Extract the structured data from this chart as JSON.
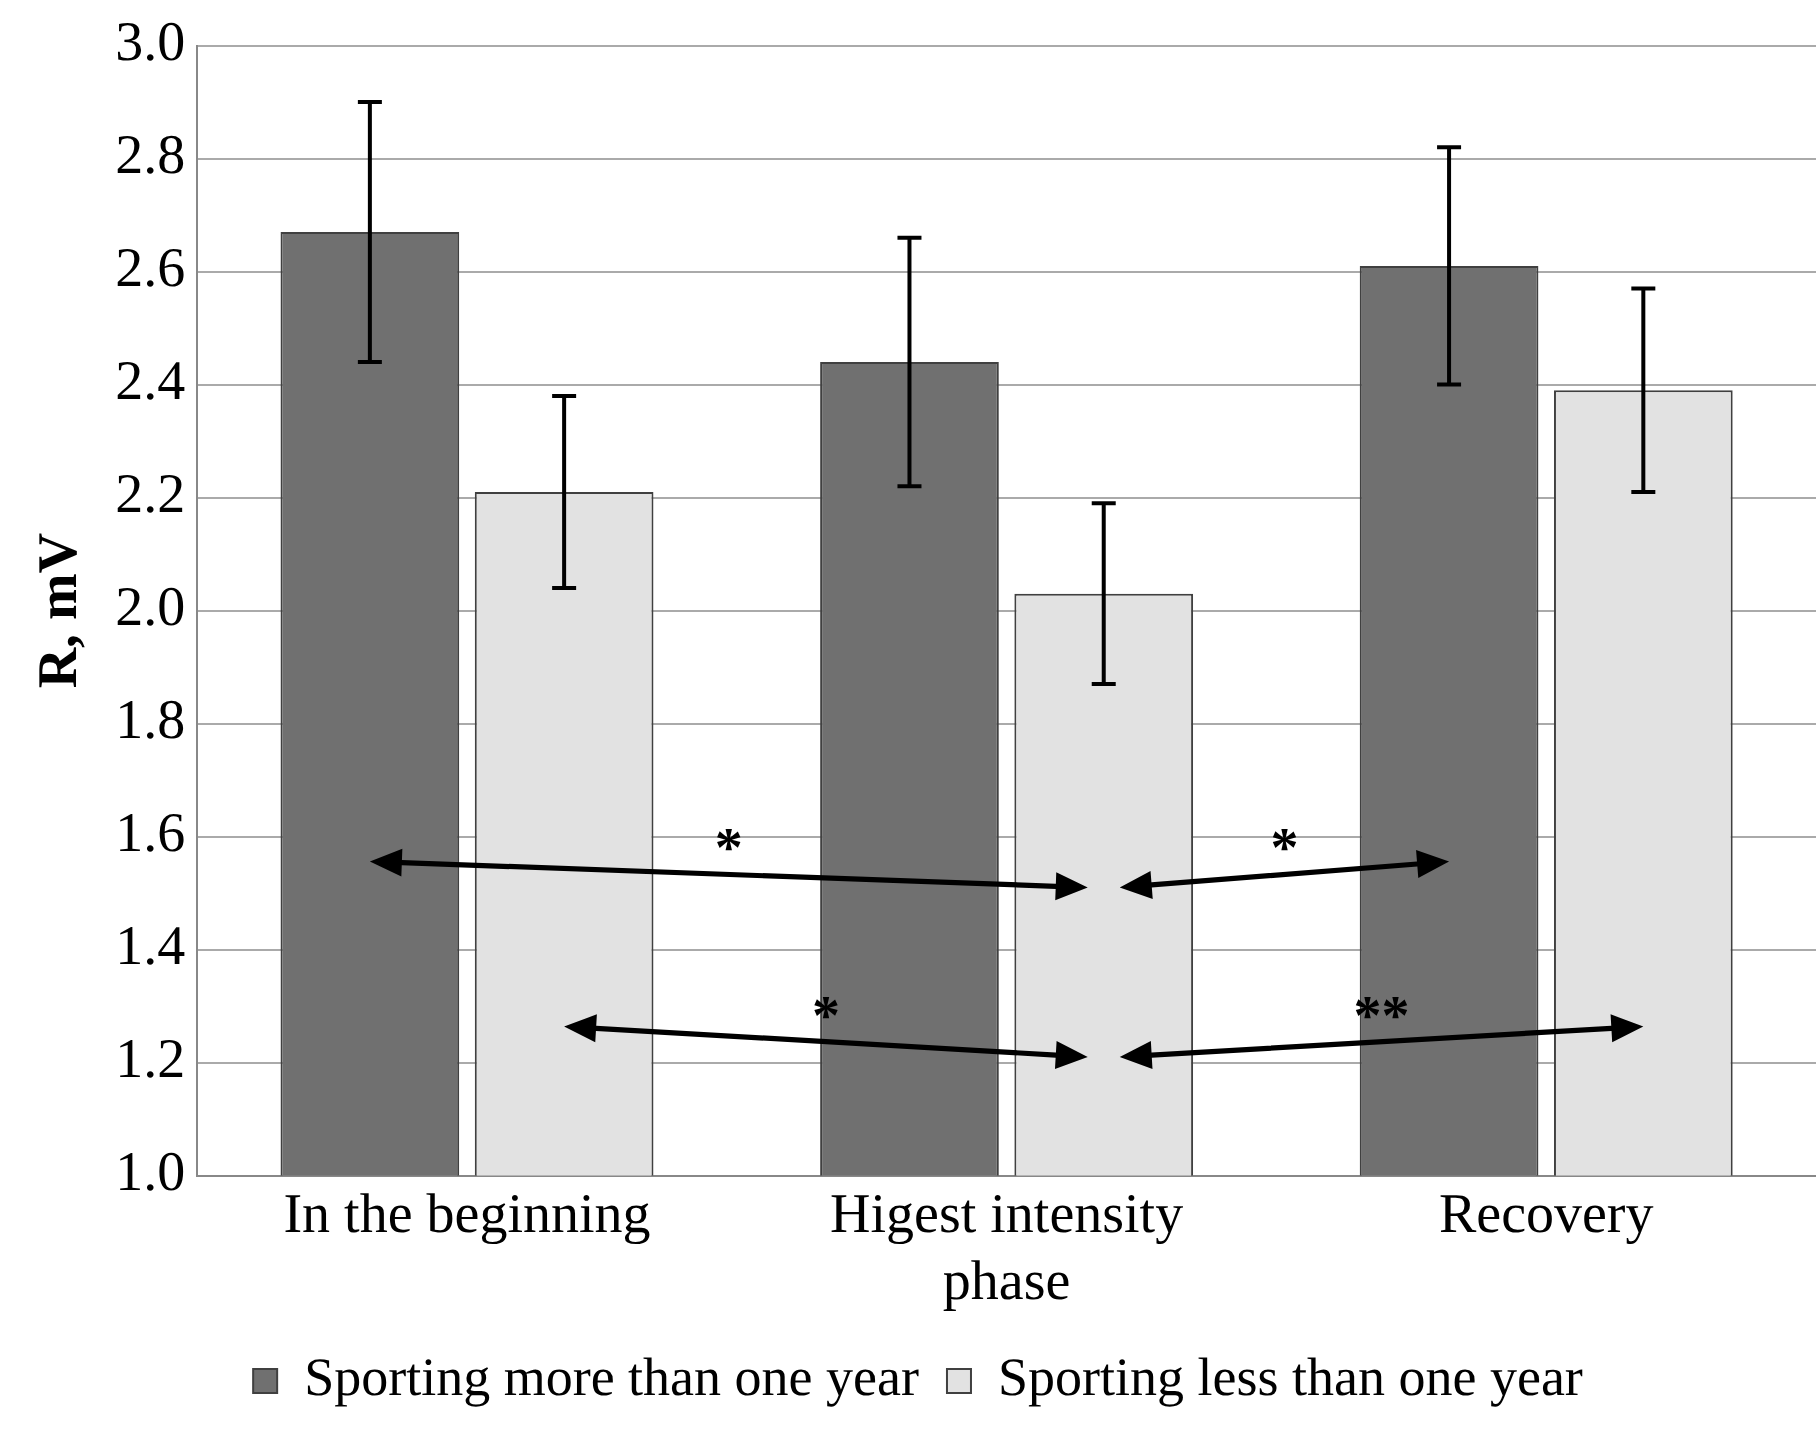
{
  "chart_data": {
    "type": "bar",
    "ylabel": "R, mV",
    "categories": [
      "In the beginning",
      "Higest intensity phase",
      "Recovery"
    ],
    "series": [
      {
        "name": "Sporting more than one year",
        "color": "#707070",
        "values": [
          2.67,
          2.44,
          2.61
        ],
        "errors": [
          0.23,
          0.22,
          0.21
        ]
      },
      {
        "name": "Sporting less than one year",
        "color": "#e2e2e2",
        "values": [
          2.21,
          2.03,
          2.39
        ],
        "errors": [
          0.17,
          0.16,
          0.18
        ]
      }
    ],
    "ylim": [
      1.0,
      3.0
    ],
    "yticks": [
      {
        "value": 1.0,
        "label": "1.0"
      },
      {
        "value": 1.2,
        "label": "1.2"
      },
      {
        "value": 1.4,
        "label": "1.4"
      },
      {
        "value": 1.6,
        "label": "1.6"
      },
      {
        "value": 1.8,
        "label": "1.8"
      },
      {
        "value": 2.0,
        "label": "2.0"
      },
      {
        "value": 2.2,
        "label": "2.2"
      },
      {
        "value": 2.4,
        "label": "2.4"
      },
      {
        "value": 2.6,
        "label": "2.6"
      },
      {
        "value": 2.8,
        "label": "2.8"
      },
      {
        "value": 3.0,
        "label": "3.0"
      }
    ],
    "grid": "y",
    "legend": "bottom",
    "annotations": [
      "*",
      "*",
      "*",
      "**"
    ]
  }
}
